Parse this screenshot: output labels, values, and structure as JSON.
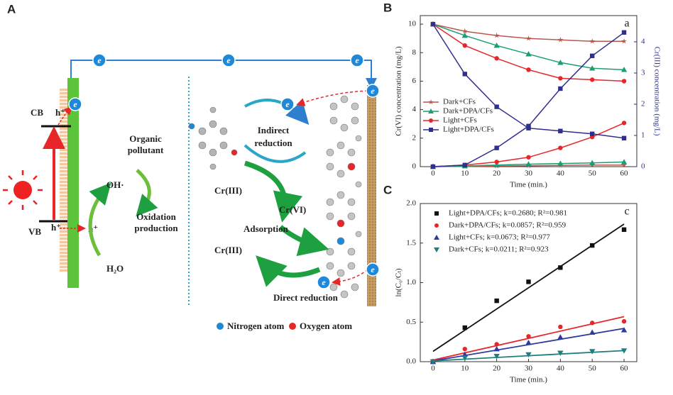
{
  "diagram": {
    "panel_label": "A",
    "electron": "e",
    "cb": "CB",
    "vb": "VB",
    "hole": "h⁺",
    "hydroxyl": "OH·",
    "organic_pollutant": [
      "Organic",
      "pollutant"
    ],
    "oxidation_production": [
      "Oxidation",
      "production"
    ],
    "water": "H₂O",
    "indirect_reduction": [
      "Indirect",
      "reduction"
    ],
    "cr3_top": "Cr(III)",
    "cr6": "Cr(VI)",
    "adsorption": "Adsorption",
    "cr3_bottom": "Cr(III)",
    "direct_reduction": "Direct reduction",
    "nitrogen_atom": "Nitrogen atom",
    "oxygen_atom": "Oxygen atom"
  },
  "chart_data": [
    {
      "type": "line",
      "panel_label": "B",
      "annotation": "a",
      "x": [
        0,
        10,
        20,
        30,
        40,
        50,
        60
      ],
      "x_label": "Time (min.)",
      "y_label": "Cr(VI) concentration (mg/L)",
      "y2_label": "Cr(III) concentration (mg/L)",
      "xlim": [
        -4,
        64
      ],
      "xticks": [
        0,
        10,
        20,
        30,
        40,
        50,
        60
      ],
      "ylim": [
        0,
        10.6
      ],
      "yticks": [
        0,
        2,
        4,
        6,
        8,
        10
      ],
      "y2lim": [
        0,
        4.84
      ],
      "y2ticks": [
        0,
        1,
        2,
        3,
        4
      ],
      "legend": "left",
      "series": [
        {
          "name": "Dark+CFs",
          "color": "#b9574e",
          "marker": "star",
          "values": [
            10,
            9.5,
            9.2,
            9.0,
            8.9,
            8.8,
            8.8
          ],
          "values_y2": [
            0,
            0.01,
            0.02,
            0.03,
            0.04,
            0.05,
            0.05
          ]
        },
        {
          "name": "Dark+DPA/CFs",
          "color": "#1a9f74",
          "marker": "triangle",
          "values": [
            10,
            9.2,
            8.5,
            7.9,
            7.3,
            6.9,
            6.8
          ],
          "values_y2": [
            0,
            0.02,
            0.05,
            0.08,
            0.1,
            0.12,
            0.15
          ]
        },
        {
          "name": "Light+CFs",
          "color": "#e8262a",
          "marker": "circle",
          "values": [
            10,
            8.5,
            7.6,
            6.8,
            6.2,
            6.1,
            6.0
          ],
          "values_y2": [
            0,
            0.05,
            0.15,
            0.3,
            0.6,
            0.95,
            1.4
          ]
        },
        {
          "name": "Light+DPA/CFs",
          "color": "#2e2f8f",
          "marker": "square",
          "values": [
            10,
            6.5,
            4.2,
            2.7,
            2.5,
            2.3,
            2.0
          ],
          "values_y2": [
            0,
            0.05,
            0.6,
            1.3,
            2.5,
            3.55,
            4.3
          ]
        }
      ]
    },
    {
      "type": "scatter",
      "panel_label": "C",
      "annotation": "c",
      "x": [
        0,
        10,
        20,
        30,
        40,
        50,
        60
      ],
      "x_label": "Time (min.)",
      "y_label": "ln(C₀/Cₜ)",
      "xlim": [
        -4,
        64
      ],
      "xticks": [
        0,
        10,
        20,
        30,
        40,
        50,
        60
      ],
      "ylim": [
        0,
        2
      ],
      "yticks": [
        {
          "value": 0,
          "label": "0.0"
        },
        {
          "value": 0.5,
          "label": "0.5"
        },
        {
          "value": 1,
          "label": "1.0"
        },
        {
          "value": 1.5,
          "label": "1.5"
        },
        {
          "value": 2,
          "label": "2.0"
        }
      ],
      "legend": "upper left",
      "series": [
        {
          "name": "Light+DPA/CFs;  k=0.2680;  R²=0.981",
          "color": "#111111",
          "marker": "square",
          "values": [
            0,
            0.43,
            0.77,
            1.01,
            1.19,
            1.47,
            1.67
          ],
          "fit": {
            "x": [
              0,
              60
            ],
            "y": [
              0.13,
              1.74
            ]
          }
        },
        {
          "name": "Dark+DPA/CFs;  k=0.0857;  R²=0.959",
          "color": "#e8262a",
          "marker": "circle",
          "values": [
            0,
            0.16,
            0.22,
            0.32,
            0.44,
            0.49,
            0.51
          ],
          "fit": {
            "x": [
              0,
              60
            ],
            "y": [
              0.02,
              0.57
            ]
          }
        },
        {
          "name": "Light+CFs;  k=0.0673;  R²=0.977",
          "color": "#2e3a9f",
          "marker": "triangle",
          "values": [
            0,
            0.09,
            0.16,
            0.24,
            0.31,
            0.37,
            0.4
          ],
          "fit": {
            "x": [
              0,
              60
            ],
            "y": [
              0.01,
              0.42
            ]
          }
        },
        {
          "name": "Dark+CFs;  k=0.0211;  R²=0.923",
          "color": "#1f7f7f",
          "marker": "triangle-down",
          "values": [
            0,
            0.05,
            0.07,
            0.09,
            0.11,
            0.13,
            0.14
          ],
          "fit": {
            "x": [
              0,
              60
            ],
            "y": [
              0.01,
              0.14
            ]
          }
        }
      ]
    }
  ]
}
